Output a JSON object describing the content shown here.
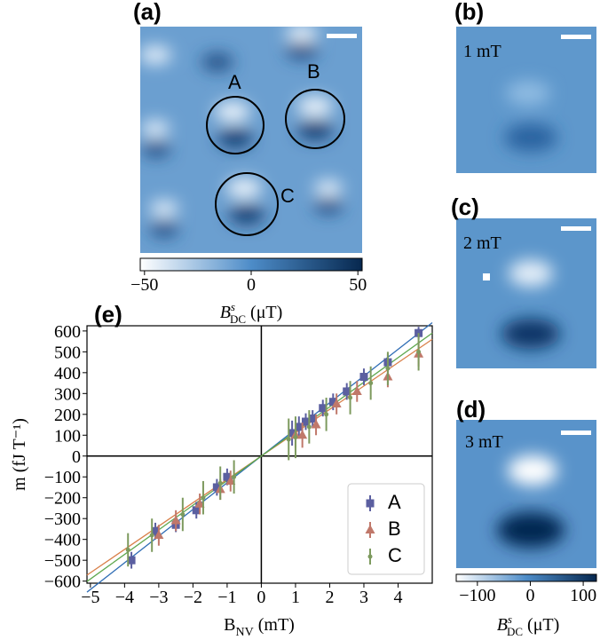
{
  "chart_data": [
    {
      "type": "image",
      "panel_label": "(a)",
      "annotations": [
        "A",
        "B",
        "C"
      ],
      "colorbar": {
        "xlim": [
          -52,
          52
        ],
        "xticks": [
          {
            "value": -50,
            "label": "−50"
          },
          0,
          50
        ],
        "label": {
          "base": "B",
          "sup": "s",
          "sub": "DC",
          "unit": " (μT)"
        }
      }
    },
    {
      "type": "image",
      "panel_label": "(b)",
      "annotations": [
        "1 mT"
      ]
    },
    {
      "type": "image",
      "panel_label": "(c)",
      "annotations": [
        "2 mT"
      ]
    },
    {
      "type": "image",
      "panel_label": "(d)",
      "annotations": [
        "3 mT"
      ],
      "colorbar": {
        "xlim": [
          -140,
          125
        ],
        "xticks": [
          {
            "value": -100,
            "label": "−100"
          },
          0,
          100
        ],
        "label": {
          "base": "B",
          "sup": "s",
          "sub": "DC",
          "unit": " (μT)"
        }
      }
    },
    {
      "type": "scatter",
      "panel_label": "(e)",
      "xlabel": {
        "base": "B",
        "sub": "NV",
        "unit": " (mT)"
      },
      "ylabel": "m (fJ T⁻¹)",
      "xlim": [
        -5.1,
        5.0
      ],
      "ylim": [
        -610,
        625
      ],
      "xticks": [
        {
          "value": -5,
          "label": "−5"
        },
        {
          "value": -4,
          "label": "−4"
        },
        {
          "value": -3,
          "label": "−3"
        },
        {
          "value": -2,
          "label": "−2"
        },
        {
          "value": -1,
          "label": "−1"
        },
        0,
        1,
        2,
        3,
        4
      ],
      "yticks": [
        {
          "value": -600,
          "label": "−600"
        },
        {
          "value": -500,
          "label": "−500"
        },
        {
          "value": -400,
          "label": "−400"
        },
        {
          "value": -300,
          "label": "−300"
        },
        {
          "value": -200,
          "label": "−200"
        },
        {
          "value": -100,
          "label": "−100"
        },
        0,
        100,
        200,
        300,
        400,
        500,
        600
      ],
      "legend": "lower right",
      "series": [
        {
          "name": "A",
          "color": "#5b5fa0",
          "line_color": "#2f6db5",
          "marker": "square",
          "fit_slope": 128,
          "x": [
            -3.8,
            -3.1,
            -2.5,
            -1.9,
            -1.3,
            -1.0,
            0.9,
            1.1,
            1.3,
            1.5,
            1.8,
            2.1,
            2.5,
            3.0,
            3.7,
            4.6
          ],
          "values": [
            -500,
            -360,
            -330,
            -260,
            -150,
            -100,
            110,
            140,
            165,
            180,
            230,
            260,
            310,
            380,
            450,
            590
          ],
          "errors": [
            40,
            40,
            35,
            40,
            40,
            40,
            60,
            50,
            40,
            40,
            40,
            40,
            40,
            40,
            40,
            30
          ]
        },
        {
          "name": "B",
          "color": "#c0786a",
          "line_color": "#d9804a",
          "marker": "triangle",
          "fit_slope": 112,
          "x": [
            -3.0,
            -2.5,
            -1.8,
            -1.2,
            -0.9,
            1.0,
            1.2,
            1.6,
            2.2,
            2.8,
            3.7,
            4.6
          ],
          "values": [
            -380,
            -310,
            -230,
            -160,
            -120,
            100,
            100,
            150,
            250,
            310,
            380,
            490
          ],
          "errors": [
            50,
            50,
            50,
            50,
            50,
            60,
            60,
            50,
            50,
            50,
            50,
            60
          ]
        },
        {
          "name": "C",
          "color": "#7d9a5e",
          "line_color": "#5fa84f",
          "marker": "dot",
          "fit_slope": 118,
          "x": [
            -3.9,
            -3.2,
            -2.3,
            -1.7,
            -1.2,
            -0.8,
            0.8,
            1.0,
            1.4,
            1.9,
            2.6,
            3.2,
            3.7,
            4.6
          ],
          "values": [
            -450,
            -380,
            -280,
            -200,
            -130,
            -100,
            80,
            90,
            140,
            200,
            280,
            350,
            420,
            500
          ],
          "errors": [
            80,
            80,
            80,
            80,
            80,
            80,
            100,
            100,
            80,
            80,
            80,
            80,
            80,
            90
          ]
        }
      ]
    }
  ]
}
